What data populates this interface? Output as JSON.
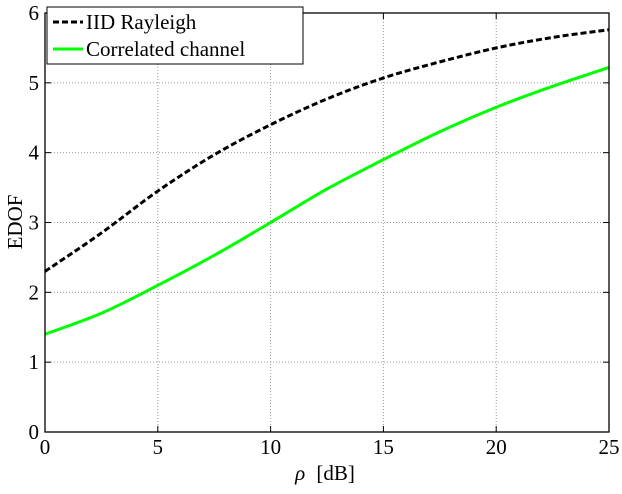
{
  "chart_data": {
    "type": "line",
    "title": "",
    "xlabel_symbol": "ρ",
    "xlabel_unit": "[dB]",
    "ylabel": "EDOF",
    "xlim": [
      0,
      25
    ],
    "ylim": [
      0,
      6
    ],
    "xticks": [
      0,
      5,
      10,
      15,
      20,
      25
    ],
    "yticks": [
      0,
      1,
      2,
      3,
      4,
      5,
      6
    ],
    "grid": true,
    "legend_position": "top-left",
    "series": [
      {
        "name": "IID Rayleigh",
        "color": "#000000",
        "style": "dashed",
        "x": [
          0,
          2.5,
          5,
          7.5,
          10,
          12.5,
          15,
          17.5,
          20,
          22.5,
          25
        ],
        "y": [
          2.3,
          2.85,
          3.45,
          3.97,
          4.4,
          4.77,
          5.07,
          5.3,
          5.5,
          5.65,
          5.76
        ]
      },
      {
        "name": "Correlated channel",
        "color": "#00ff00",
        "style": "solid",
        "x": [
          0,
          2.5,
          5,
          7.5,
          10,
          12.5,
          15,
          17.5,
          20,
          22.5,
          25
        ],
        "y": [
          1.4,
          1.7,
          2.1,
          2.53,
          3.0,
          3.48,
          3.9,
          4.3,
          4.65,
          4.95,
          5.22
        ]
      }
    ]
  }
}
